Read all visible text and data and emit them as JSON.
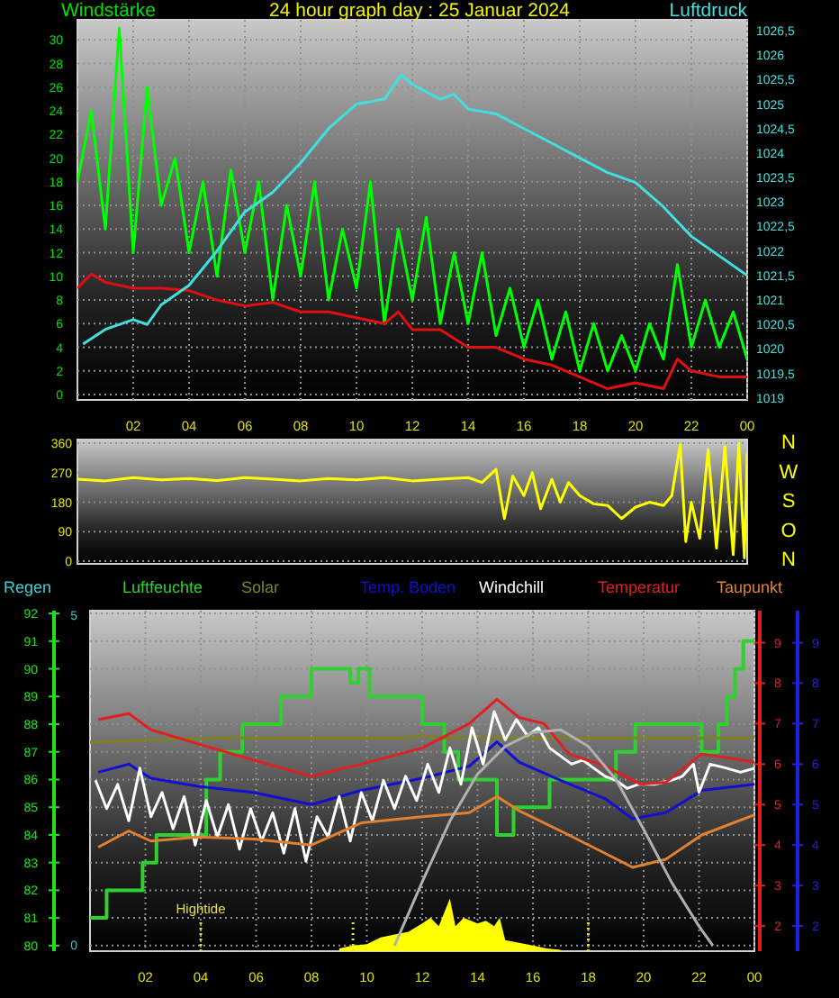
{
  "chart_data": [
    {
      "type": "line",
      "title": "24 hour graph day : 25 Januar 2024",
      "ylabel": "Windstärke",
      "y2label": "Luftdruck",
      "xlim": [
        "2024-01-25T00:00",
        "2024-01-26T00:00"
      ],
      "ylim": [
        -0.45,
        31.7
      ],
      "y2lim": [
        1018.96,
        1026.72
      ],
      "grid": true,
      "xticks": [
        {
          "value": "2024-01-25T02:00",
          "label": "02"
        },
        {
          "value": "2024-01-25T04:00",
          "label": "04"
        },
        {
          "value": "2024-01-25T06:00",
          "label": "06"
        },
        {
          "value": "2024-01-25T08:00",
          "label": "08"
        },
        {
          "value": "2024-01-25T10:00",
          "label": "10"
        },
        {
          "value": "2024-01-25T12:00",
          "label": "12"
        },
        {
          "value": "2024-01-25T14:00",
          "label": "14"
        },
        {
          "value": "2024-01-25T16:00",
          "label": "16"
        },
        {
          "value": "2024-01-25T18:00",
          "label": "18"
        },
        {
          "value": "2024-01-25T20:00",
          "label": "20"
        },
        {
          "value": "2024-01-25T22:00",
          "label": "22"
        },
        {
          "value": "2024-01-26T00:00",
          "label": "00"
        }
      ],
      "yticks": [
        0,
        2,
        4,
        6,
        8,
        10,
        12,
        14,
        16,
        18,
        20,
        22,
        24,
        26,
        28,
        30
      ],
      "y2ticks": [
        1019,
        {
          "value": 1019.5,
          "label": "1019,5"
        },
        1020,
        {
          "value": 1020.5,
          "label": "1020,5"
        },
        1021,
        {
          "value": 1021.5,
          "label": "1021,5"
        },
        1022,
        {
          "value": 1022.5,
          "label": "1022,5"
        },
        1023,
        {
          "value": 1023.5,
          "label": "1023,5"
        },
        1024,
        {
          "value": 1024.5,
          "label": "1024,5"
        },
        1025,
        {
          "value": 1025.5,
          "label": "1025,5"
        },
        1026,
        {
          "value": 1026.5,
          "label": "1026,5"
        }
      ],
      "series": [
        {
          "color": "#00ff00",
          "x": [
            "2024-01-25T00:00",
            "2024-01-25T00:30",
            "2024-01-25T01:00",
            "2024-01-25T01:30",
            "2024-01-25T02:00",
            "2024-01-25T02:30",
            "2024-01-25T03:00",
            "2024-01-25T03:30",
            "2024-01-25T04:00",
            "2024-01-25T04:30",
            "2024-01-25T05:00",
            "2024-01-25T05:30",
            "2024-01-25T06:00",
            "2024-01-25T06:30",
            "2024-01-25T07:00",
            "2024-01-25T07:30",
            "2024-01-25T08:00",
            "2024-01-25T08:30",
            "2024-01-25T09:00",
            "2024-01-25T09:30",
            "2024-01-25T10:00",
            "2024-01-25T10:30",
            "2024-01-25T11:00",
            "2024-01-25T11:30",
            "2024-01-25T12:00",
            "2024-01-25T12:30",
            "2024-01-25T13:00",
            "2024-01-25T13:30",
            "2024-01-25T14:00",
            "2024-01-25T14:30",
            "2024-01-25T15:00",
            "2024-01-25T15:30",
            "2024-01-25T16:00",
            "2024-01-25T16:30",
            "2024-01-25T17:00",
            "2024-01-25T17:30",
            "2024-01-25T18:00",
            "2024-01-25T18:30",
            "2024-01-25T19:00",
            "2024-01-25T19:30",
            "2024-01-25T20:00",
            "2024-01-25T20:30",
            "2024-01-25T21:00",
            "2024-01-25T21:30",
            "2024-01-25T22:00",
            "2024-01-25T22:30",
            "2024-01-25T23:00",
            "2024-01-25T23:30",
            "2024-01-26T00:00"
          ],
          "values": [
            18,
            24,
            14,
            31,
            12,
            26,
            16,
            20,
            12,
            18,
            10,
            19,
            12,
            18,
            8,
            16,
            10,
            18,
            8,
            14,
            9,
            18,
            6,
            14,
            8,
            15,
            6,
            12,
            6,
            12,
            5,
            9,
            4,
            8,
            3,
            7,
            2,
            6,
            2,
            5,
            2,
            6,
            3,
            11,
            4,
            8,
            4,
            7,
            3
          ]
        },
        {
          "color": "#e01010",
          "x": [
            "2024-01-25T00:00",
            "2024-01-25T00:30",
            "2024-01-25T01:00",
            "2024-01-25T02:00",
            "2024-01-25T03:00",
            "2024-01-25T04:00",
            "2024-01-25T05:00",
            "2024-01-25T06:00",
            "2024-01-25T07:00",
            "2024-01-25T08:00",
            "2024-01-25T09:00",
            "2024-01-25T10:00",
            "2024-01-25T11:00",
            "2024-01-25T11:30",
            "2024-01-25T12:00",
            "2024-01-25T13:00",
            "2024-01-25T14:00",
            "2024-01-25T15:00",
            "2024-01-25T16:00",
            "2024-01-25T17:00",
            "2024-01-25T18:00",
            "2024-01-25T19:00",
            "2024-01-25T20:00",
            "2024-01-25T21:00",
            "2024-01-25T21:30",
            "2024-01-25T22:00",
            "2024-01-25T23:00",
            "2024-01-26T00:00"
          ],
          "values": [
            9,
            10.2,
            9.5,
            9,
            9,
            8.8,
            8,
            7.5,
            7.8,
            7,
            7,
            6.5,
            6,
            7,
            5.5,
            5.5,
            4,
            4,
            3,
            2.5,
            1.5,
            0.5,
            1,
            0.5,
            3,
            2,
            1.5,
            1.5
          ]
        },
        {
          "color": "#40e0e0",
          "axis": "y2",
          "x": [
            "2024-01-25T00:12",
            "2024-01-25T01:00",
            "2024-01-25T02:00",
            "2024-01-25T02:30",
            "2024-01-25T03:00",
            "2024-01-25T04:00",
            "2024-01-25T05:00",
            "2024-01-25T06:00",
            "2024-01-25T07:00",
            "2024-01-25T08:00",
            "2024-01-25T09:00",
            "2024-01-25T10:00",
            "2024-01-25T11:00",
            "2024-01-25T11:36",
            "2024-01-25T12:00",
            "2024-01-25T13:00",
            "2024-01-25T13:30",
            "2024-01-25T14:00",
            "2024-01-25T15:00",
            "2024-01-25T16:00",
            "2024-01-25T17:00",
            "2024-01-25T18:00",
            "2024-01-25T19:00",
            "2024-01-25T20:00",
            "2024-01-25T21:00",
            "2024-01-25T22:00",
            "2024-01-25T23:00",
            "2024-01-26T00:00"
          ],
          "values": [
            1020.1,
            1020.4,
            1020.6,
            1020.5,
            1020.9,
            1021.3,
            1022,
            1022.8,
            1023.2,
            1023.8,
            1024.5,
            1025,
            1025.1,
            1025.6,
            1025.4,
            1025.1,
            1025.2,
            1024.9,
            1024.8,
            1024.5,
            1024.2,
            1023.9,
            1023.6,
            1023.4,
            1022.9,
            1022.3,
            1021.9,
            1021.5
          ]
        }
      ]
    },
    {
      "type": "line",
      "xlim": [
        "2024-01-25T00:00",
        "2024-01-26T00:00"
      ],
      "ylim": [
        -8,
        371
      ],
      "grid": "y",
      "annotations": [
        "N",
        "W",
        "S",
        "O",
        "N"
      ],
      "yticks": [
        0,
        90,
        180,
        270,
        360
      ],
      "series": [
        {
          "color": "#ffff00",
          "x": [
            "2024-01-25T00:00",
            "2024-01-25T01:00",
            "2024-01-25T02:00",
            "2024-01-25T03:00",
            "2024-01-25T04:00",
            "2024-01-25T05:00",
            "2024-01-25T06:00",
            "2024-01-25T07:00",
            "2024-01-25T08:00",
            "2024-01-25T09:00",
            "2024-01-25T10:00",
            "2024-01-25T11:00",
            "2024-01-25T12:00",
            "2024-01-25T13:00",
            "2024-01-25T14:00",
            "2024-01-25T14:30",
            "2024-01-25T15:00",
            "2024-01-25T15:18",
            "2024-01-25T15:36",
            "2024-01-25T16:00",
            "2024-01-25T16:18",
            "2024-01-25T16:36",
            "2024-01-25T17:00",
            "2024-01-25T17:18",
            "2024-01-25T17:36",
            "2024-01-25T18:00",
            "2024-01-25T18:30",
            "2024-01-25T19:00",
            "2024-01-25T19:30",
            "2024-01-25T20:00",
            "2024-01-25T20:30",
            "2024-01-25T21:00",
            "2024-01-25T21:18",
            "2024-01-25T21:36",
            "2024-01-25T21:48",
            "2024-01-25T22:00",
            "2024-01-25T22:18",
            "2024-01-25T22:36",
            "2024-01-25T22:54",
            "2024-01-25T23:12",
            "2024-01-25T23:30",
            "2024-01-25T23:42",
            "2024-01-25T23:54",
            "2024-01-26T00:00"
          ],
          "values": [
            250,
            245,
            255,
            248,
            252,
            246,
            255,
            250,
            245,
            252,
            248,
            255,
            245,
            250,
            255,
            240,
            280,
            130,
            260,
            200,
            270,
            160,
            250,
            180,
            240,
            200,
            175,
            170,
            130,
            165,
            180,
            170,
            200,
            355,
            60,
            180,
            70,
            340,
            40,
            350,
            20,
            360,
            10,
            330
          ]
        }
      ]
    },
    {
      "type": "line",
      "xlim": [
        "2024-01-25T00:00",
        "2024-01-26T00:00"
      ],
      "ylim": [
        79.8,
        92.1
      ],
      "y2lim": [
        1.38,
        9.79
      ],
      "y3lim": [
        1.38,
        9.79
      ],
      "grid": true,
      "legend": "top",
      "annotations": [
        "5",
        "0"
      ],
      "xticks": [
        {
          "value": "2024-01-25T02:00",
          "label": "02"
        },
        {
          "value": "2024-01-25T04:00",
          "label": "04"
        },
        {
          "value": "2024-01-25T06:00",
          "label": "06"
        },
        {
          "value": "2024-01-25T08:00",
          "label": "08"
        },
        {
          "value": "2024-01-25T10:00",
          "label": "10"
        },
        {
          "value": "2024-01-25T12:00",
          "label": "12"
        },
        {
          "value": "2024-01-25T14:00",
          "label": "14"
        },
        {
          "value": "2024-01-25T16:00",
          "label": "16"
        },
        {
          "value": "2024-01-25T18:00",
          "label": "18"
        },
        {
          "value": "2024-01-25T20:00",
          "label": "20"
        },
        {
          "value": "2024-01-25T22:00",
          "label": "22"
        },
        {
          "value": "2024-01-26T00:00",
          "label": "00"
        }
      ],
      "yticks": [
        80,
        81,
        82,
        83,
        84,
        85,
        86,
        87,
        88,
        89,
        90,
        91,
        92
      ],
      "y2ticks": [
        2,
        3,
        4,
        5,
        6,
        7,
        8,
        9
      ],
      "y3ticks": [
        2,
        3,
        4,
        5,
        6,
        7,
        8,
        9
      ],
      "ref_lines": [
        {
          "axis": "x",
          "value": "2024-01-25T04:00",
          "label": "Hightide",
          "color": "#e0e040",
          "line_style": "dotted"
        },
        {
          "axis": "x",
          "value": "2024-01-25T09:30",
          "color": "#e0e040",
          "line_style": "dotted"
        },
        {
          "axis": "x",
          "value": "2024-01-25T18:00",
          "color": "#e0e040",
          "line_style": "dotted"
        }
      ],
      "series": [
        {
          "name": "Regen",
          "color": "#40d0d0",
          "values": [
            null
          ]
        },
        {
          "name": "Luftfeuchte",
          "color": "#30d030",
          "type": "step",
          "x": [
            "2024-01-25T00:00",
            "2024-01-25T00:36",
            "2024-01-25T01:54",
            "2024-01-25T02:24",
            "2024-01-25T04:12",
            "2024-01-25T04:42",
            "2024-01-25T05:30",
            "2024-01-25T06:54",
            "2024-01-25T08:00",
            "2024-01-25T09:24",
            "2024-01-25T09:42",
            "2024-01-25T10:06",
            "2024-01-25T12:00",
            "2024-01-25T12:48",
            "2024-01-25T13:18",
            "2024-01-25T14:42",
            "2024-01-25T15:18",
            "2024-01-25T16:36",
            "2024-01-25T19:00",
            "2024-01-25T19:42",
            "2024-01-25T22:06",
            "2024-01-25T22:42",
            "2024-01-25T23:00",
            "2024-01-25T23:18",
            "2024-01-25T23:36",
            "2024-01-26T00:00"
          ],
          "values": [
            81,
            82,
            83,
            84,
            86,
            87,
            88,
            89,
            90,
            89.5,
            90,
            89,
            88,
            87,
            86,
            84,
            85,
            86,
            87,
            88,
            87,
            88,
            89,
            90,
            91,
            91
          ]
        },
        {
          "name": "Solar",
          "color": "#808020",
          "x": [
            "2024-01-25T00:00",
            "2024-01-25T04:30",
            "2024-01-25T11:30",
            "2024-01-25T12:00",
            "2024-01-25T12:30",
            "2024-01-26T00:00"
          ],
          "values": [
            87.35,
            87.5,
            87.5,
            87.6,
            87.5,
            87.5
          ]
        },
        {
          "name": "Temp. Boden",
          "color": "#1010d0",
          "axis": "y3",
          "x": [
            "2024-01-25T00:18",
            "2024-01-25T01:24",
            "2024-01-25T02:12",
            "2024-01-25T03:54",
            "2024-01-25T05:54",
            "2024-01-25T08:00",
            "2024-01-25T09:48",
            "2024-01-25T12:00",
            "2024-01-25T13:42",
            "2024-01-25T14:42",
            "2024-01-25T15:30",
            "2024-01-25T17:00",
            "2024-01-25T18:36",
            "2024-01-25T19:36",
            "2024-01-25T20:48",
            "2024-01-25T22:06",
            "2024-01-26T00:00"
          ],
          "values": [
            5.8,
            6,
            5.65,
            5.45,
            5.3,
            5,
            5.35,
            5.65,
            5.95,
            6.55,
            6.05,
            5.6,
            5.15,
            4.65,
            4.8,
            5.35,
            5.5
          ]
        },
        {
          "name": "Windchill",
          "color": "#ffffff",
          "axis": "y2",
          "x": [
            "2024-01-25T00:12",
            "2024-01-25T00:36",
            "2024-01-25T01:00",
            "2024-01-25T01:24",
            "2024-01-25T01:48",
            "2024-01-25T02:12",
            "2024-01-25T02:36",
            "2024-01-25T03:00",
            "2024-01-25T03:24",
            "2024-01-25T03:48",
            "2024-01-25T04:12",
            "2024-01-25T04:36",
            "2024-01-25T05:00",
            "2024-01-25T05:24",
            "2024-01-25T05:48",
            "2024-01-25T06:12",
            "2024-01-25T06:36",
            "2024-01-25T07:00",
            "2024-01-25T07:24",
            "2024-01-25T07:48",
            "2024-01-25T08:12",
            "2024-01-25T08:36",
            "2024-01-25T09:00",
            "2024-01-25T09:24",
            "2024-01-25T09:48",
            "2024-01-25T10:12",
            "2024-01-25T10:36",
            "2024-01-25T11:00",
            "2024-01-25T11:24",
            "2024-01-25T11:48",
            "2024-01-25T12:12",
            "2024-01-25T12:36",
            "2024-01-25T13:00",
            "2024-01-25T13:24",
            "2024-01-25T13:48",
            "2024-01-25T14:12",
            "2024-01-25T14:36",
            "2024-01-25T15:00",
            "2024-01-25T15:24",
            "2024-01-25T15:48",
            "2024-01-25T16:12",
            "2024-01-25T16:36",
            "2024-01-25T17:00",
            "2024-01-25T17:24",
            "2024-01-25T17:48",
            "2024-01-25T18:12",
            "2024-01-25T18:36",
            "2024-01-25T19:00",
            "2024-01-25T19:24",
            "2024-01-25T19:48",
            "2024-01-25T20:24",
            "2024-01-25T21:00",
            "2024-01-25T21:24",
            "2024-01-25T21:48",
            "2024-01-25T22:00",
            "2024-01-25T22:24",
            "2024-01-25T23:00",
            "2024-01-25T23:30",
            "2024-01-26T00:00"
          ],
          "values": [
            5.6,
            4.9,
            5.5,
            4.6,
            5.9,
            4.7,
            5.3,
            4.4,
            5.2,
            4,
            5.1,
            4.2,
            5,
            3.9,
            4.9,
            4.1,
            4.8,
            3.8,
            4.9,
            3.6,
            4.7,
            4.2,
            5.2,
            4.1,
            5.3,
            4.6,
            5.6,
            4.9,
            5.7,
            5.1,
            6,
            5.3,
            6.4,
            5.5,
            6.9,
            6,
            7.3,
            6.6,
            7.1,
            6.7,
            6.9,
            6.4,
            6.2,
            6,
            6.1,
            5.9,
            5.7,
            5.6,
            5.4,
            5.5,
            5.5,
            5.6,
            5.7,
            6,
            5.3,
            6,
            5.9,
            5.8,
            5.9
          ]
        },
        {
          "name": "Temperatur",
          "color": "#e02020",
          "axis": "y2",
          "x": [
            "2024-01-25T00:18",
            "2024-01-25T01:24",
            "2024-01-25T02:12",
            "2024-01-25T03:54",
            "2024-01-25T05:54",
            "2024-01-25T08:00",
            "2024-01-25T09:48",
            "2024-01-25T12:00",
            "2024-01-25T13:42",
            "2024-01-25T14:42",
            "2024-01-25T15:30",
            "2024-01-25T16:24",
            "2024-01-25T17:18",
            "2024-01-25T18:36",
            "2024-01-25T19:54",
            "2024-01-25T20:48",
            "2024-01-25T22:06",
            "2024-01-26T00:00"
          ],
          "values": [
            7.1,
            7.25,
            6.85,
            6.5,
            6.1,
            5.7,
            6,
            6.4,
            7,
            7.6,
            7.15,
            7,
            6.25,
            5.95,
            5.5,
            5.55,
            6.25,
            6.05
          ]
        },
        {
          "name": "Taupunkt",
          "color": "#e08030",
          "axis": "y2",
          "x": [
            "2024-01-25T00:18",
            "2024-01-25T01:24",
            "2024-01-25T02:12",
            "2024-01-25T03:54",
            "2024-01-25T05:54",
            "2024-01-25T08:00",
            "2024-01-25T09:48",
            "2024-01-25T12:00",
            "2024-01-25T13:42",
            "2024-01-25T14:42",
            "2024-01-25T15:30",
            "2024-01-25T17:00",
            "2024-01-25T18:36",
            "2024-01-25T19:36",
            "2024-01-25T20:48",
            "2024-01-25T22:06",
            "2024-01-26T00:00"
          ],
          "values": [
            3.95,
            4.35,
            4.1,
            4.2,
            4.15,
            4,
            4.55,
            4.7,
            4.8,
            5.2,
            4.85,
            4.35,
            3.8,
            3.45,
            3.65,
            4.25,
            4.75
          ]
        },
        {
          "color": "#ffff00",
          "type": "area",
          "x": [
            "2024-01-25T09:00",
            "2024-01-25T09:30",
            "2024-01-25T10:00",
            "2024-01-25T10:30",
            "2024-01-25T11:00",
            "2024-01-25T11:30",
            "2024-01-25T12:00",
            "2024-01-25T12:18",
            "2024-01-25T12:36",
            "2024-01-25T13:00",
            "2024-01-25T13:12",
            "2024-01-25T13:30",
            "2024-01-25T14:00",
            "2024-01-25T14:18",
            "2024-01-25T14:36",
            "2024-01-25T14:48",
            "2024-01-25T15:00",
            "2024-01-25T15:30",
            "2024-01-25T16:00",
            "2024-01-25T16:30",
            "2024-01-25T17:00"
          ],
          "values": [
            79.9,
            80,
            80.05,
            80.3,
            80.4,
            80.5,
            80.8,
            81,
            80.7,
            81.7,
            80.7,
            81,
            80.8,
            80.9,
            80.7,
            81,
            80.2,
            80.1,
            80,
            79.9,
            79.85
          ]
        },
        {
          "color": "#b0b0b0",
          "x": [
            "2024-01-25T11:00",
            "2024-01-25T12:00",
            "2024-01-25T13:00",
            "2024-01-25T14:00",
            "2024-01-25T15:00",
            "2024-01-25T16:00",
            "2024-01-25T17:00",
            "2024-01-25T18:00",
            "2024-01-25T19:00",
            "2024-01-25T20:00",
            "2024-01-25T21:00",
            "2024-01-25T22:00",
            "2024-01-25T22:30"
          ],
          "values": [
            80,
            82.3,
            84.5,
            86.2,
            87.2,
            87.7,
            87.8,
            87.2,
            86,
            84.2,
            82.3,
            80.7,
            80
          ]
        }
      ]
    }
  ]
}
